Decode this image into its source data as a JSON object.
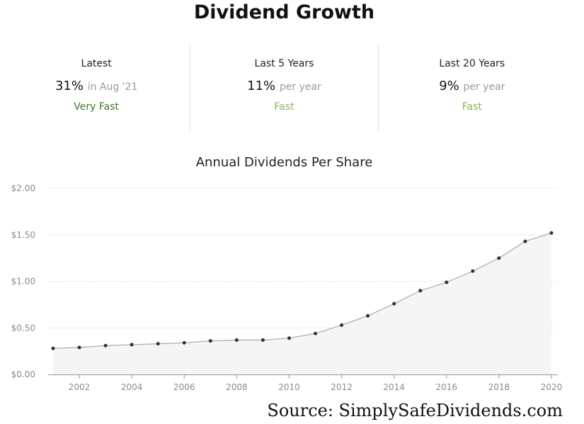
{
  "title": "Dividend Growth",
  "stats": [
    {
      "label": "Latest",
      "value": "31%",
      "note": "in Aug '21",
      "rating": "Very Fast",
      "rating_color": "#3d7a29"
    },
    {
      "label": "Last 5 Years",
      "value": "11%",
      "note": "per year",
      "rating": "Fast",
      "rating_color": "#86b556"
    },
    {
      "label": "Last 20 Years",
      "value": "9%",
      "note": "per year",
      "rating": "Fast",
      "rating_color": "#86b556"
    }
  ],
  "chart_data": {
    "type": "area",
    "title": "Annual Dividends Per Share",
    "xlabel": "",
    "ylabel": "",
    "x": [
      2001,
      2002,
      2003,
      2004,
      2005,
      2006,
      2007,
      2008,
      2009,
      2010,
      2011,
      2012,
      2013,
      2014,
      2015,
      2016,
      2017,
      2018,
      2019,
      2020
    ],
    "values": [
      0.28,
      0.29,
      0.31,
      0.32,
      0.33,
      0.34,
      0.36,
      0.37,
      0.37,
      0.39,
      0.44,
      0.53,
      0.63,
      0.76,
      0.9,
      0.99,
      1.11,
      1.25,
      1.43,
      1.52
    ],
    "xlim": [
      2001,
      2020
    ],
    "ylim": [
      0,
      2
    ],
    "y_ticks": [
      0,
      0.5,
      1,
      1.5,
      2
    ],
    "y_tick_labels": [
      "$0.00",
      "$0.50",
      "$1.00",
      "$1.50",
      "$2.00"
    ],
    "x_ticks": [
      2002,
      2004,
      2006,
      2008,
      2010,
      2012,
      2014,
      2016,
      2018,
      2020
    ],
    "x_tick_labels": [
      "2002",
      "2004",
      "2006",
      "2008",
      "2010",
      "2012",
      "2014",
      "2016",
      "2018",
      "2020"
    ],
    "grid": true,
    "legend": false,
    "line_color": "#aaaaaa",
    "point_color": "#333333",
    "fill_color": "#f5f5f5",
    "grid_color": "#cccccc"
  },
  "source": "Source: SimplySafeDividends.com"
}
